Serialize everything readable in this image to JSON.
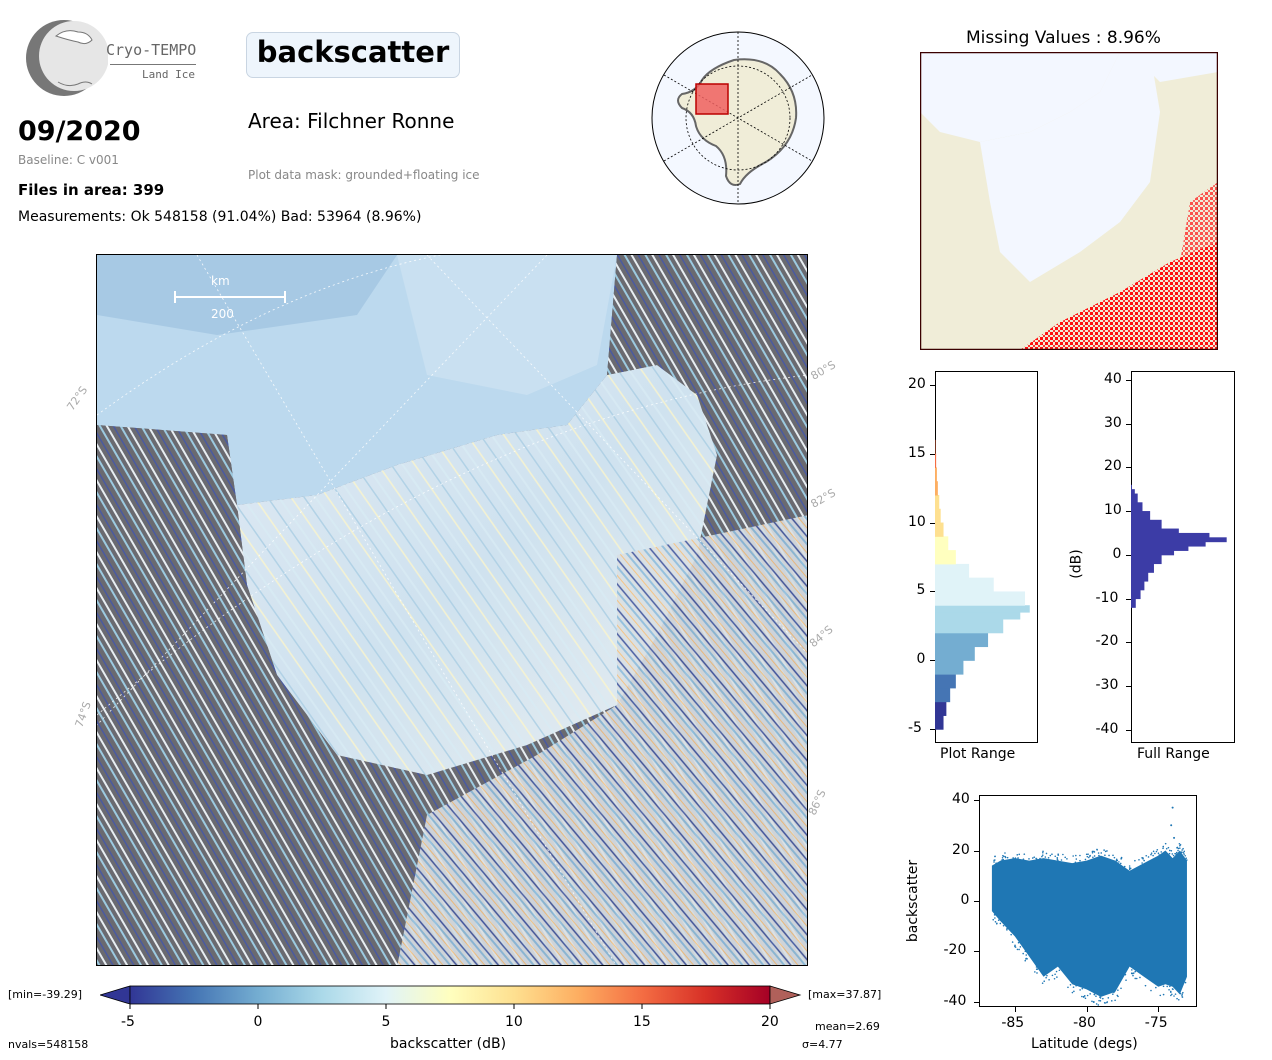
{
  "header": {
    "logo_name": "Cryo-TEMPO",
    "logo_sub": "Land Ice",
    "date": "09/2020",
    "baseline": "Baseline: C v001",
    "files_in_area": "Files in area: 399",
    "measurements": "Measurements: Ok 548158 (91.04%) Bad: 53964 (8.96%)",
    "title": "backscatter",
    "area": "Area: Filchner Ronne",
    "mask": "Plot data mask: grounded+floating ice"
  },
  "map": {
    "scale_unit": "km",
    "scale_value": "200",
    "lat_labels": [
      "72°S",
      "74°S",
      "80°S",
      "82°S",
      "84°S",
      "86°S"
    ]
  },
  "missing_panel": {
    "title": "Missing Values : 8.96%"
  },
  "colorbar": {
    "label": "backscatter (dB)",
    "ticks": [
      "-5",
      "0",
      "5",
      "10",
      "15",
      "20"
    ],
    "min_label": "[min=-39.29]",
    "max_label": "[max=37.87]",
    "nvals": "nvals=548158",
    "mean": "mean=2.69",
    "sigma": "σ=4.77",
    "colors": [
      "#313695",
      "#4575b4",
      "#74add1",
      "#abd9e9",
      "#e0f3f8",
      "#ffffbf",
      "#fee090",
      "#fdae61",
      "#f46d43",
      "#d73027",
      "#a50026"
    ]
  },
  "chart_data": [
    {
      "type": "histogram",
      "name_label": "Plot Range",
      "orientation": "horizontal",
      "ylim": [
        -6,
        21
      ],
      "yticks": [
        "20",
        "15",
        "10",
        "5",
        "0",
        "-5"
      ],
      "bins_y": [
        -5,
        -4,
        -3,
        -2,
        -1,
        0,
        1,
        2,
        3,
        3.5,
        4,
        5,
        6,
        7,
        8,
        9,
        10,
        11,
        12,
        13,
        14,
        15
      ],
      "counts": [
        0.09,
        0.12,
        0.16,
        0.22,
        0.3,
        0.42,
        0.56,
        0.72,
        0.9,
        1.0,
        0.95,
        0.62,
        0.36,
        0.22,
        0.14,
        0.09,
        0.06,
        0.045,
        0.03,
        0.02,
        0.012,
        0.005
      ]
    },
    {
      "type": "histogram",
      "name_label": "Full Range",
      "orientation": "horizontal",
      "ylabel": "(dB)",
      "ylim": [
        -43,
        42
      ],
      "yticks": [
        "40",
        "30",
        "20",
        "10",
        "0",
        "-10",
        "-20",
        "-30",
        "-40"
      ],
      "bins_y": [
        -12,
        -10,
        -8,
        -6,
        -4,
        -2,
        0,
        1,
        2,
        3,
        4,
        5,
        6,
        8,
        10,
        12,
        14,
        15
      ],
      "counts": [
        0.05,
        0.1,
        0.14,
        0.18,
        0.24,
        0.32,
        0.45,
        0.6,
        0.78,
        1.0,
        0.82,
        0.5,
        0.32,
        0.2,
        0.12,
        0.07,
        0.04,
        0.01
      ],
      "color": "#3c3ca6"
    },
    {
      "type": "scatter",
      "xlabel": "Latitude (degs)",
      "ylabel": "backscatter",
      "xlim": [
        -87.5,
        -72.3
      ],
      "ylim": [
        -42,
        42
      ],
      "xticks": [
        "-85",
        "-80",
        "-75"
      ],
      "yticks": [
        "40",
        "20",
        "0",
        "-20",
        "-40"
      ],
      "color": "#1f77b4",
      "envelope": {
        "x": [
          -86.6,
          -86,
          -85,
          -84,
          -83,
          -82,
          -81,
          -80,
          -79,
          -78,
          -77,
          -76,
          -75,
          -74.5,
          -74,
          -73.5,
          -73
        ],
        "upper": [
          14,
          16,
          17,
          16,
          17,
          16,
          15,
          16,
          18,
          16,
          12,
          15,
          18,
          20,
          17,
          20,
          16
        ],
        "lower": [
          -4,
          -8,
          -14,
          -22,
          -30,
          -26,
          -33,
          -35,
          -38,
          -36,
          -26,
          -30,
          -34,
          -33,
          -34,
          -37,
          -30
        ]
      },
      "outliers": [
        [
          -74,
          37
        ],
        [
          -74.1,
          30
        ],
        [
          -73.9,
          25
        ],
        [
          -80.2,
          -38
        ],
        [
          -79.5,
          -40
        ]
      ]
    }
  ]
}
